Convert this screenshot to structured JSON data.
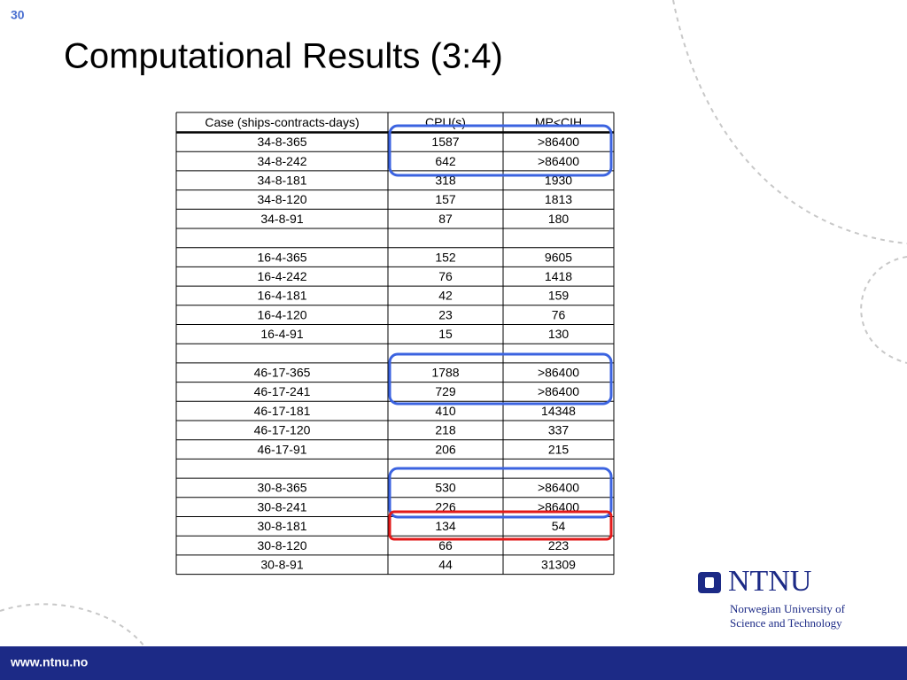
{
  "slide": {
    "page_number": "30",
    "title": "Computational Results (3:4)"
  },
  "table": {
    "header": [
      "Case (ships-contracts-days)",
      "CPU(s)",
      "MP<CIH"
    ],
    "groups": [
      {
        "rows": [
          [
            "34-8-365",
            "1587",
            ">86400"
          ],
          [
            "34-8-242",
            "642",
            ">86400"
          ],
          [
            "34-8-181",
            "318",
            "1930"
          ],
          [
            "34-8-120",
            "157",
            "1813"
          ],
          [
            "34-8-91",
            "87",
            "180"
          ]
        ]
      },
      {
        "rows": [
          [
            "16-4-365",
            "152",
            "9605"
          ],
          [
            "16-4-242",
            "76",
            "1418"
          ],
          [
            "16-4-181",
            "42",
            "159"
          ],
          [
            "16-4-120",
            "23",
            "76"
          ],
          [
            "16-4-91",
            "15",
            "130"
          ]
        ]
      },
      {
        "rows": [
          [
            "46-17-365",
            "1788",
            ">86400"
          ],
          [
            "46-17-241",
            "729",
            ">86400"
          ],
          [
            "46-17-181",
            "410",
            "14348"
          ],
          [
            "46-17-120",
            "218",
            "337"
          ],
          [
            "46-17-91",
            "206",
            "215"
          ]
        ]
      },
      {
        "rows": [
          [
            "30-8-365",
            "530",
            ">86400"
          ],
          [
            "30-8-241",
            "226",
            ">86400"
          ],
          [
            "30-8-181",
            "134",
            "54"
          ],
          [
            "30-8-120",
            "66",
            "223"
          ],
          [
            "30-8-91",
            "44",
            "31309"
          ]
        ]
      }
    ]
  },
  "logo": {
    "name": "NTNU",
    "line1": "Norwegian University of",
    "line2": "Science and Technology"
  },
  "footer": {
    "url": "www.ntnu.no"
  }
}
